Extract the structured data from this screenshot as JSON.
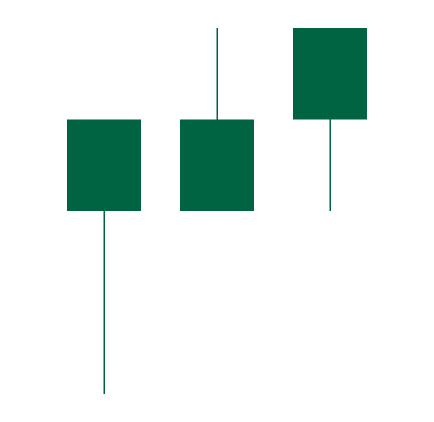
{
  "chart_data": {
    "type": "candlestick",
    "title": "",
    "xlabel": "",
    "ylabel": "",
    "grid": false,
    "legend": "none",
    "candles": [
      {
        "open": 2,
        "close": 3,
        "low": 0,
        "high": 3
      },
      {
        "open": 2,
        "close": 3,
        "low": 2,
        "high": 4
      },
      {
        "open": 3,
        "close": 4,
        "low": 2,
        "high": 4
      }
    ],
    "ylim": [
      0,
      4
    ],
    "colors": {
      "body": "#006341",
      "wick": "#006341",
      "background": "#ffffff"
    }
  }
}
